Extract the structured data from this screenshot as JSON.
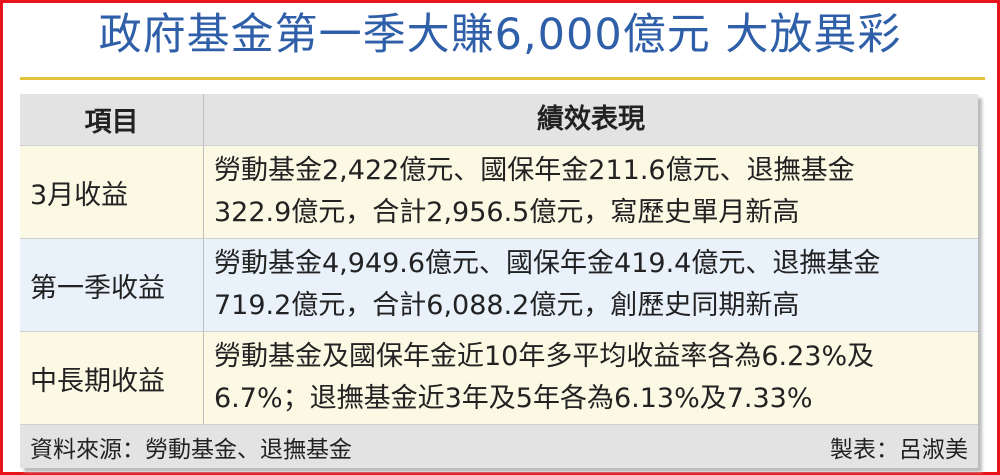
{
  "title": "政府基金第一季大賺6,000億元  大放異彩",
  "table": {
    "headers": [
      "項目",
      "績效表現"
    ],
    "rows": [
      {
        "item": "3月收益",
        "lines": [
          "勞動基金2,422億元、國保年金211.6億元、退撫基金",
          "322.9億元，合計2,956.5億元，寫歷史單月新高"
        ]
      },
      {
        "item": "第一季收益",
        "lines": [
          "勞動基金4,949.6億元、國保年金419.4億元、退撫基金",
          "719.2億元，合計6,088.2億元，創歷史同期新高"
        ]
      },
      {
        "item": "中長期收益",
        "lines": [
          "勞動基金及國保年金近10年多平均收益率各為6.23%及",
          "6.7%；退撫基金近3年及5年各為6.13%及7.33%"
        ]
      }
    ]
  },
  "footer": {
    "source": "資料來源：勞動基金、退撫基金",
    "author": "製表：呂淑美"
  },
  "colors": {
    "title": "#2f5fa8",
    "border": "#e8141b",
    "rule": "#e2c23a"
  }
}
